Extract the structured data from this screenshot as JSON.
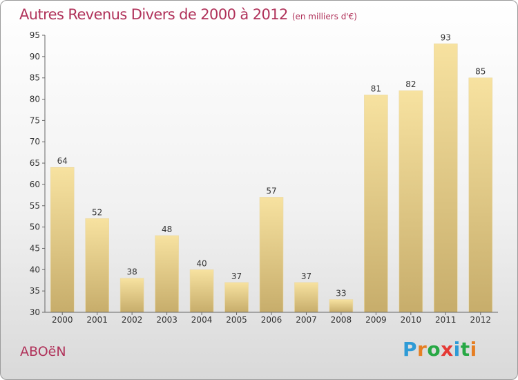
{
  "title": "Autres Revenus Divers de 2000 à 2012",
  "subtitle": "(en milliers d'€)",
  "city": "ABOëN",
  "logo": {
    "letters": [
      "P",
      "r",
      "o",
      "x",
      "i",
      "t",
      "i"
    ],
    "colors": [
      "#2e9bd6",
      "#e67e22",
      "#27a844",
      "#e53935",
      "#2e9bd6",
      "#27a844",
      "#e67e22"
    ]
  },
  "colors": {
    "title": "#b0325a",
    "bar_light": "#f7e2a0",
    "bar_dark": "#c7ad6b",
    "axis": "#666666"
  },
  "chart_data": {
    "type": "bar",
    "title": "Autres Revenus Divers de 2000 à 2012",
    "subtitle": "(en milliers d'€)",
    "categories": [
      "2000",
      "2001",
      "2002",
      "2003",
      "2004",
      "2005",
      "2006",
      "2007",
      "2008",
      "2009",
      "2010",
      "2011",
      "2012"
    ],
    "values": [
      64,
      52,
      38,
      48,
      40,
      37,
      57,
      37,
      33,
      81,
      82,
      93,
      85
    ],
    "ylim": [
      30,
      95
    ],
    "yticks": [
      30,
      35,
      40,
      45,
      50,
      55,
      60,
      65,
      70,
      75,
      80,
      85,
      90,
      95
    ],
    "grid": false,
    "data_labels": true
  }
}
